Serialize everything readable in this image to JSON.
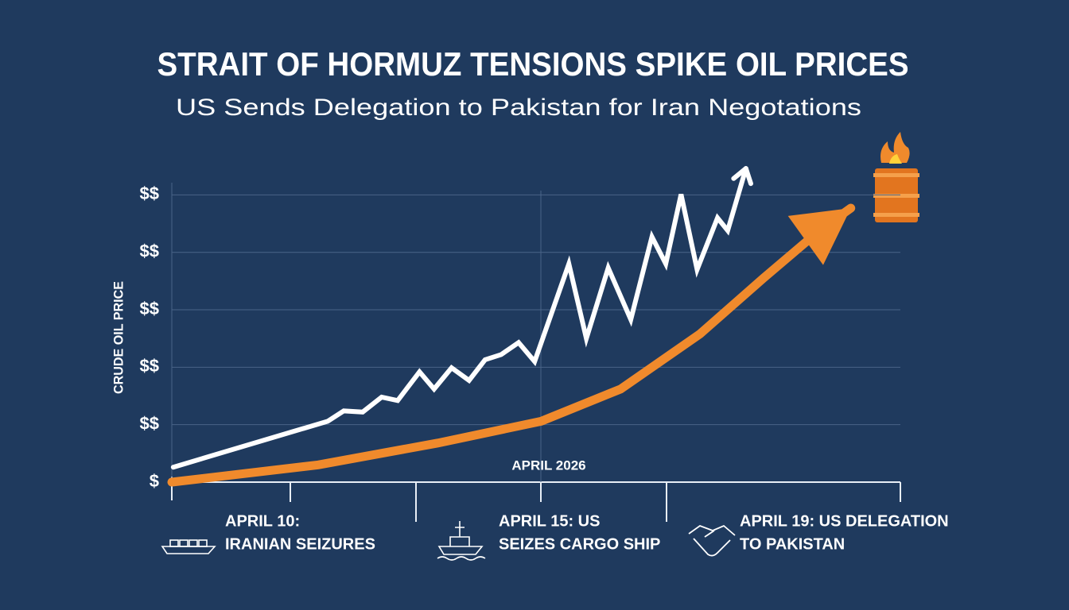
{
  "chart_data": {
    "type": "line",
    "title": "STRAIT OF HORMUZ TENSIONS SPIKE OIL PRICES",
    "subtitle": "US Sends Delegation to Pakistan for Iran Negotations",
    "y_label": "CRUDE OIL PRICE",
    "x_label": "APRIL 2026",
    "xlim": [
      0,
      100
    ],
    "ylim": [
      0,
      5.6
    ],
    "yticks": [
      {
        "value": 0,
        "label": "$"
      },
      {
        "value": 1,
        "label": "$$"
      },
      {
        "value": 2,
        "label": "$$"
      },
      {
        "value": 3,
        "label": "$$"
      },
      {
        "value": 4,
        "label": "$$"
      },
      {
        "value": 5,
        "label": "$$"
      }
    ],
    "grid": true,
    "series": [
      {
        "color": "#ffffff",
        "x": [
          0.2,
          21.4,
          23.6,
          26.2,
          28.8,
          31.0,
          34.0,
          36.0,
          38.4,
          40.8,
          43.0,
          45.2,
          47.6,
          49.8,
          54.5,
          56.9,
          59.9,
          63.0,
          65.9,
          67.8,
          69.9,
          72.1,
          74.9,
          76.3,
          78.8
        ],
        "values": [
          0.26,
          1.06,
          1.24,
          1.22,
          1.48,
          1.42,
          1.92,
          1.62,
          1.99,
          1.77,
          2.13,
          2.22,
          2.43,
          2.1,
          3.8,
          2.5,
          3.73,
          2.83,
          4.27,
          3.8,
          5.01,
          3.7,
          4.6,
          4.38,
          5.46
        ]
      },
      {
        "color": "#f08a2c",
        "x": [
          0,
          20.1,
          36.5,
          50.7,
          61.6,
          72.5,
          81.2,
          88.9,
          93.2
        ],
        "values": [
          0,
          0.3,
          0.68,
          1.06,
          1.62,
          2.58,
          3.55,
          4.38,
          4.77
        ]
      }
    ],
    "annotations": [
      {
        "lines": [
          "APRIL 10:",
          "IRANIAN SEIZURES"
        ]
      },
      {
        "lines": [
          "APRIL 15: US",
          "SEIZES CARGO SHIP"
        ]
      },
      {
        "lines": [
          "APRIL 19: US DELEGATION",
          "TO PAKISTAN"
        ]
      }
    ]
  }
}
